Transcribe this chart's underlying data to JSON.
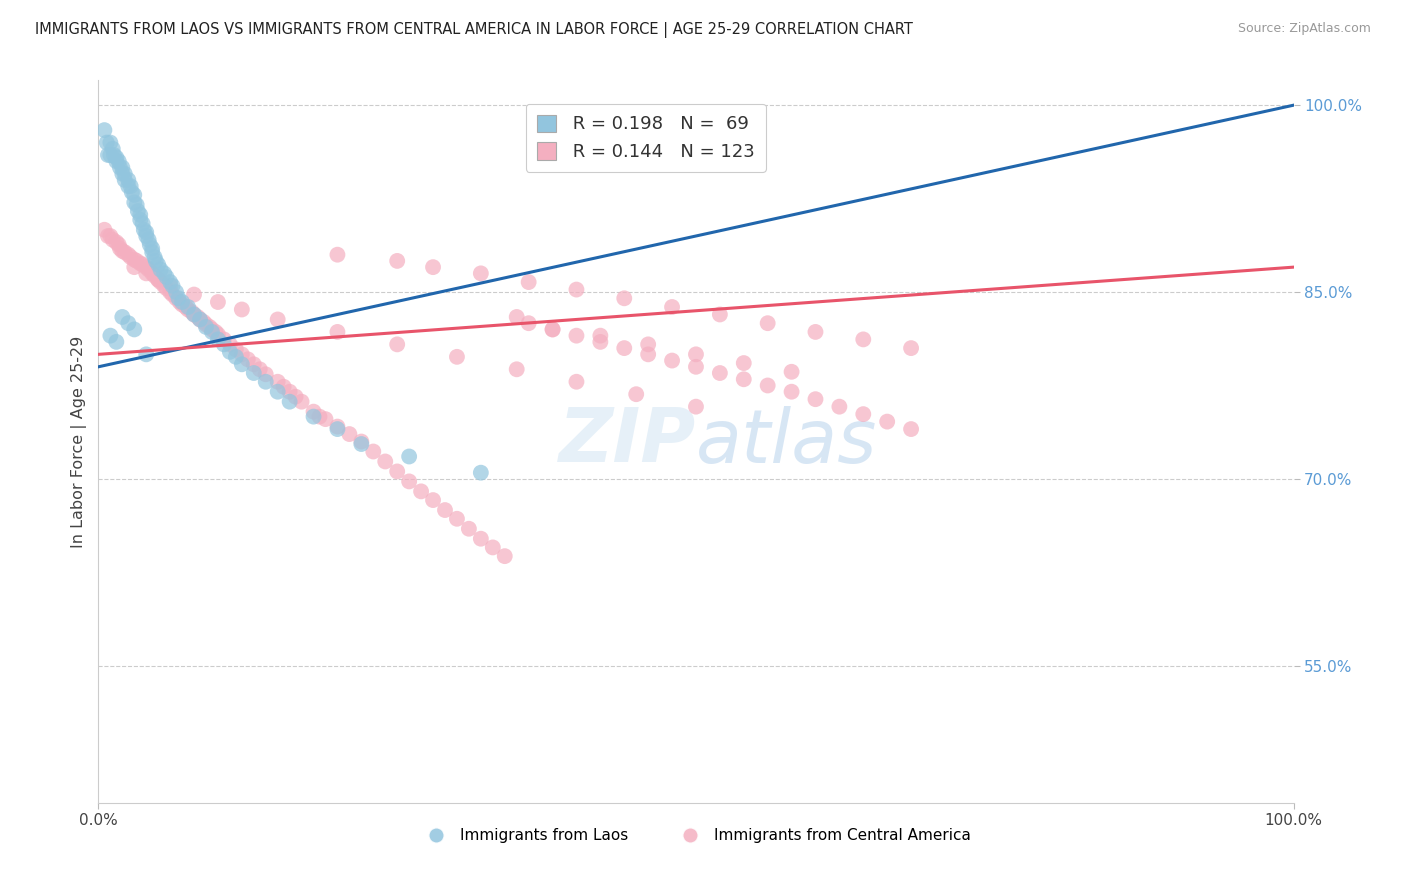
{
  "title": "IMMIGRANTS FROM LAOS VS IMMIGRANTS FROM CENTRAL AMERICA IN LABOR FORCE | AGE 25-29 CORRELATION CHART",
  "source": "Source: ZipAtlas.com",
  "ylabel": "In Labor Force | Age 25-29",
  "blue_R": 0.198,
  "blue_N": 69,
  "pink_R": 0.144,
  "pink_N": 123,
  "legend_label_blue": "Immigrants from Laos",
  "legend_label_pink": "Immigrants from Central America",
  "blue_color": "#92c5de",
  "pink_color": "#f4afc0",
  "blue_line_color": "#2166ac",
  "pink_line_color": "#e8546a",
  "background_color": "#ffffff",
  "xlim": [
    0.0,
    1.0
  ],
  "ylim": [
    0.44,
    1.02
  ],
  "yticks": [
    0.55,
    0.7,
    0.85,
    1.0
  ],
  "ytick_labels": [
    "55.0%",
    "70.0%",
    "85.0%",
    "100.0%"
  ],
  "blue_x": [
    0.005,
    0.007,
    0.008,
    0.01,
    0.01,
    0.012,
    0.013,
    0.015,
    0.015,
    0.017,
    0.018,
    0.02,
    0.02,
    0.022,
    0.022,
    0.025,
    0.025,
    0.027,
    0.028,
    0.03,
    0.03,
    0.032,
    0.033,
    0.035,
    0.035,
    0.037,
    0.038,
    0.04,
    0.04,
    0.042,
    0.043,
    0.045,
    0.045,
    0.047,
    0.048,
    0.05,
    0.052,
    0.055,
    0.057,
    0.06,
    0.062,
    0.065,
    0.067,
    0.07,
    0.075,
    0.08,
    0.085,
    0.09,
    0.095,
    0.1,
    0.105,
    0.11,
    0.115,
    0.12,
    0.13,
    0.14,
    0.15,
    0.16,
    0.18,
    0.2,
    0.22,
    0.26,
    0.32,
    0.02,
    0.025,
    0.03,
    0.01,
    0.015,
    0.04
  ],
  "blue_y": [
    0.98,
    0.97,
    0.96,
    0.97,
    0.96,
    0.965,
    0.96,
    0.958,
    0.955,
    0.955,
    0.95,
    0.95,
    0.945,
    0.945,
    0.94,
    0.94,
    0.935,
    0.935,
    0.93,
    0.928,
    0.922,
    0.92,
    0.915,
    0.912,
    0.908,
    0.905,
    0.9,
    0.898,
    0.895,
    0.892,
    0.888,
    0.885,
    0.882,
    0.878,
    0.875,
    0.872,
    0.868,
    0.865,
    0.862,
    0.858,
    0.855,
    0.85,
    0.845,
    0.842,
    0.838,
    0.832,
    0.828,
    0.822,
    0.818,
    0.812,
    0.808,
    0.802,
    0.798,
    0.792,
    0.785,
    0.778,
    0.77,
    0.762,
    0.75,
    0.74,
    0.728,
    0.718,
    0.705,
    0.83,
    0.825,
    0.82,
    0.815,
    0.81,
    0.8
  ],
  "pink_x": [
    0.005,
    0.008,
    0.01,
    0.012,
    0.015,
    0.017,
    0.018,
    0.02,
    0.022,
    0.025,
    0.027,
    0.03,
    0.032,
    0.035,
    0.037,
    0.04,
    0.042,
    0.045,
    0.047,
    0.05,
    0.052,
    0.055,
    0.057,
    0.06,
    0.062,
    0.065,
    0.068,
    0.07,
    0.073,
    0.075,
    0.078,
    0.08,
    0.083,
    0.085,
    0.088,
    0.09,
    0.093,
    0.095,
    0.098,
    0.1,
    0.105,
    0.11,
    0.115,
    0.12,
    0.125,
    0.13,
    0.135,
    0.14,
    0.15,
    0.155,
    0.16,
    0.165,
    0.17,
    0.18,
    0.185,
    0.19,
    0.2,
    0.21,
    0.22,
    0.23,
    0.24,
    0.25,
    0.26,
    0.27,
    0.28,
    0.29,
    0.3,
    0.31,
    0.32,
    0.33,
    0.34,
    0.35,
    0.36,
    0.38,
    0.4,
    0.42,
    0.44,
    0.46,
    0.48,
    0.5,
    0.52,
    0.54,
    0.56,
    0.58,
    0.6,
    0.62,
    0.64,
    0.66,
    0.68,
    0.03,
    0.04,
    0.05,
    0.06,
    0.08,
    0.1,
    0.12,
    0.15,
    0.2,
    0.25,
    0.3,
    0.35,
    0.4,
    0.45,
    0.5,
    0.2,
    0.25,
    0.28,
    0.32,
    0.36,
    0.4,
    0.44,
    0.48,
    0.52,
    0.56,
    0.6,
    0.64,
    0.68,
    0.38,
    0.42,
    0.46,
    0.5,
    0.54,
    0.58
  ],
  "pink_y": [
    0.9,
    0.895,
    0.895,
    0.892,
    0.89,
    0.888,
    0.885,
    0.883,
    0.882,
    0.88,
    0.878,
    0.876,
    0.875,
    0.873,
    0.872,
    0.87,
    0.868,
    0.865,
    0.863,
    0.86,
    0.858,
    0.855,
    0.853,
    0.85,
    0.848,
    0.845,
    0.842,
    0.84,
    0.838,
    0.836,
    0.834,
    0.832,
    0.83,
    0.828,
    0.826,
    0.824,
    0.822,
    0.82,
    0.818,
    0.816,
    0.812,
    0.808,
    0.804,
    0.8,
    0.796,
    0.792,
    0.788,
    0.784,
    0.778,
    0.774,
    0.77,
    0.766,
    0.762,
    0.754,
    0.75,
    0.748,
    0.742,
    0.736,
    0.73,
    0.722,
    0.714,
    0.706,
    0.698,
    0.69,
    0.683,
    0.675,
    0.668,
    0.66,
    0.652,
    0.645,
    0.638,
    0.83,
    0.825,
    0.82,
    0.815,
    0.81,
    0.805,
    0.8,
    0.795,
    0.79,
    0.785,
    0.78,
    0.775,
    0.77,
    0.764,
    0.758,
    0.752,
    0.746,
    0.74,
    0.87,
    0.865,
    0.86,
    0.855,
    0.848,
    0.842,
    0.836,
    0.828,
    0.818,
    0.808,
    0.798,
    0.788,
    0.778,
    0.768,
    0.758,
    0.88,
    0.875,
    0.87,
    0.865,
    0.858,
    0.852,
    0.845,
    0.838,
    0.832,
    0.825,
    0.818,
    0.812,
    0.805,
    0.82,
    0.815,
    0.808,
    0.8,
    0.793,
    0.786
  ],
  "blue_trend_x": [
    0.0,
    1.0
  ],
  "blue_trend_y": [
    0.79,
    1.0
  ],
  "pink_trend_x": [
    0.0,
    1.0
  ],
  "pink_trend_y": [
    0.8,
    0.87
  ]
}
